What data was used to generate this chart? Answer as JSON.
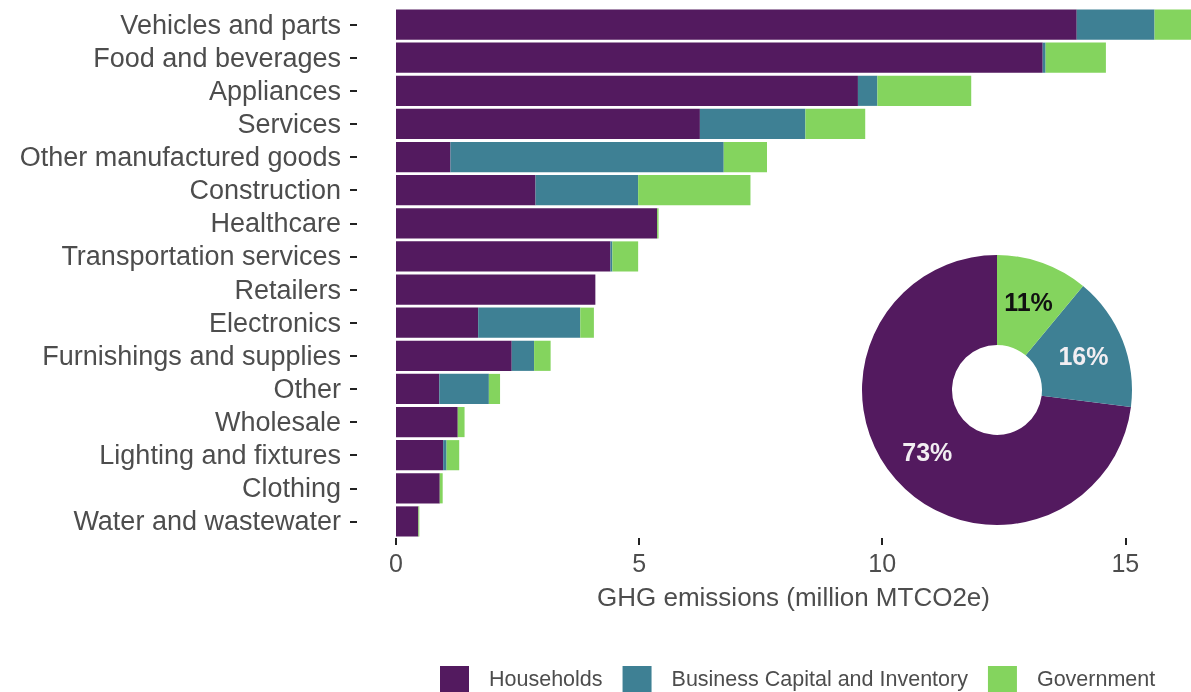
{
  "chart_data": [
    {
      "type": "bar",
      "orientation": "horizontal",
      "stacked": true,
      "categories": [
        "Vehicles and parts",
        "Food and beverages",
        "Appliances",
        "Services",
        "Other manufactured goods",
        "Construction",
        "Healthcare",
        "Transportation services",
        "Retailers",
        "Electronics",
        "Furnishings and supplies",
        "Other",
        "Wholesale",
        "Lighting and fixtures",
        "Clothing",
        "Water and wastewater"
      ],
      "series": [
        {
          "name": "Households",
          "color": "#531a5f",
          "values": [
            14.0,
            13.3,
            9.5,
            6.25,
            1.12,
            2.87,
            5.37,
            4.41,
            4.1,
            1.69,
            2.38,
            0.89,
            1.27,
            0.97,
            0.9,
            0.46
          ]
        },
        {
          "name": "Business Capital and Inventory",
          "color": "#3e8094",
          "values": [
            1.6,
            0.06,
            0.4,
            2.17,
            5.62,
            2.11,
            0,
            0.04,
            0,
            2.1,
            0.46,
            1.02,
            0,
            0.07,
            0,
            0
          ]
        },
        {
          "name": "Government",
          "color": "#84d45e",
          "values": [
            0.75,
            1.24,
            1.93,
            1.23,
            0.89,
            2.31,
            0.03,
            0.53,
            0,
            0.28,
            0.34,
            0.23,
            0.14,
            0.26,
            0.06,
            0.02
          ]
        }
      ],
      "xlabel": "GHG emissions (million MTCO2e)",
      "xlim": [
        0,
        16.35
      ],
      "xticks": [
        0,
        5,
        10,
        15
      ],
      "grid": false,
      "legend": "bottom"
    },
    {
      "type": "donut",
      "categories": [
        null,
        null,
        null
      ],
      "values": [
        73,
        16,
        11
      ],
      "colors": [
        "#531a5f",
        "#3e8094",
        "#84d45e"
      ],
      "value_labels": [
        "73%",
        "16%",
        "11%"
      ]
    }
  ]
}
